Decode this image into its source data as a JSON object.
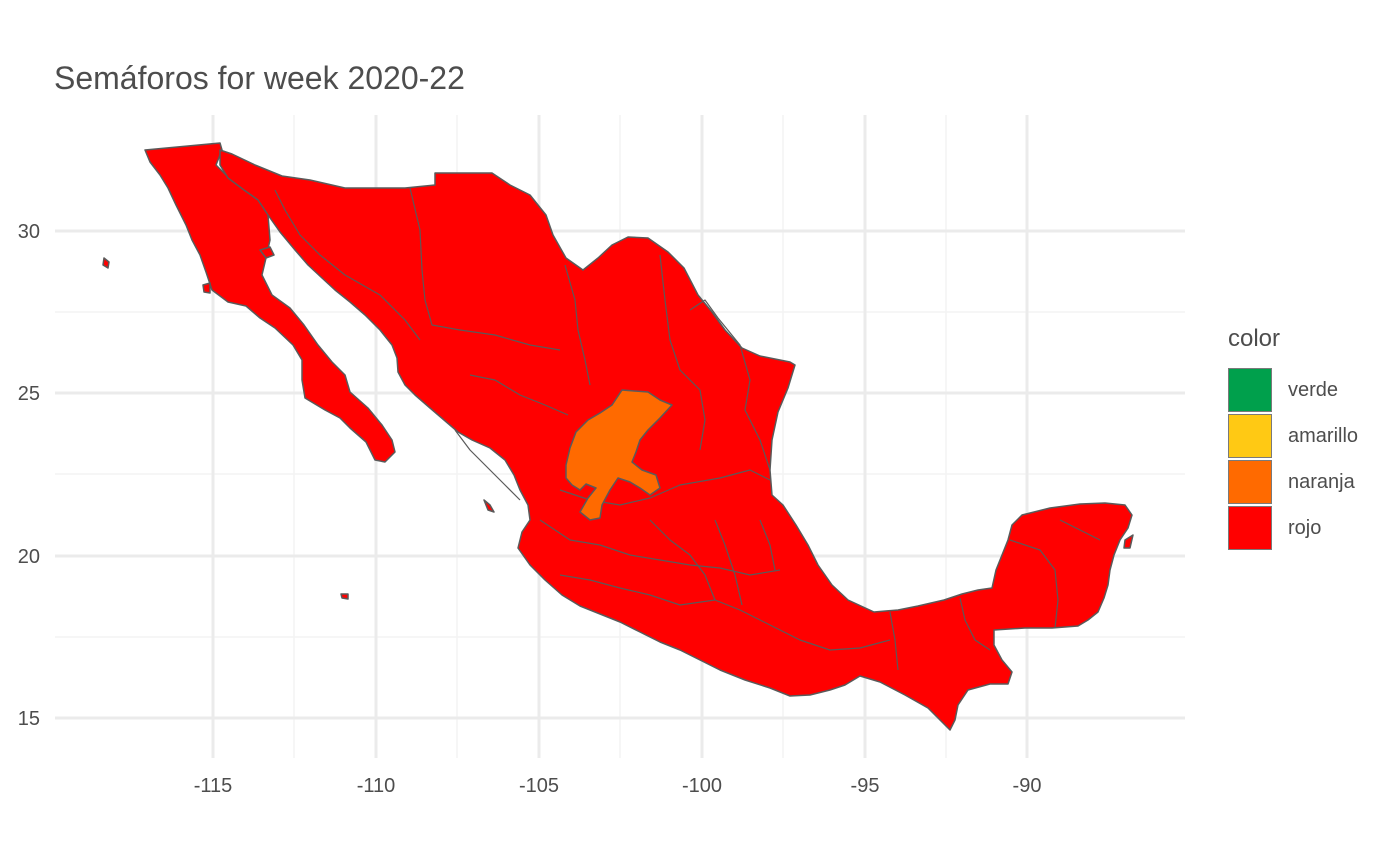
{
  "title": "Semáforos for week 2020-22",
  "axes": {
    "x_ticks": [
      "-115",
      "-110",
      "-105",
      "-100",
      "-95",
      "-90"
    ],
    "y_ticks": [
      "30",
      "25",
      "20",
      "15"
    ]
  },
  "legend": {
    "title": "color",
    "items": [
      {
        "label": "verde",
        "color": "#00a04c"
      },
      {
        "label": "amarillo",
        "color": "#ffc914"
      },
      {
        "label": "naranja",
        "color": "#ff6a00"
      },
      {
        "label": "rojo",
        "color": "#ff0000"
      }
    ]
  },
  "regions": {
    "country_status": "rojo",
    "zacatecas_status": "naranja"
  },
  "chart_data": {
    "type": "choropleth",
    "region": "Mexico states",
    "xlim": [
      -118.5,
      -86.5
    ],
    "ylim": [
      14.5,
      32.7
    ],
    "grid": true,
    "legend_position": "right",
    "state_status": {
      "Zacatecas": "naranja",
      "all_other_states": "rojo"
    }
  }
}
